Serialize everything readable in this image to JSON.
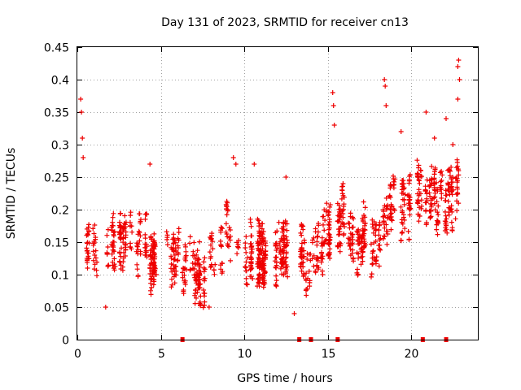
{
  "chart_data": {
    "type": "scatter",
    "title": "Day 131 of 2023, SRMTID for receiver cn13",
    "xlabel": "GPS time / hours",
    "ylabel": "SRMTID / TECUs",
    "xlim": [
      0,
      24
    ],
    "ylim": [
      0,
      0.45
    ],
    "x_ticks": [
      0,
      5,
      10,
      15,
      20
    ],
    "x_tick_labels": [
      "0",
      "5",
      "10",
      "15",
      "20"
    ],
    "y_ticks": [
      0,
      0.05,
      0.1,
      0.15,
      0.2,
      0.25,
      0.3,
      0.35,
      0.4,
      0.45
    ],
    "y_tick_labels": [
      "0",
      "0.05",
      "0.1",
      "0.15",
      "0.2",
      "0.25",
      "0.3",
      "0.35",
      "0.4",
      "0.45"
    ],
    "grid": true,
    "marker": "+",
    "series": [
      {
        "name": "SRMTID",
        "color": "#ee0000",
        "trend": {
          "x": [
            0,
            0.5,
            1,
            2,
            3,
            4,
            5,
            6,
            7,
            8,
            9,
            10,
            11,
            12,
            13,
            14,
            15,
            15.5,
            16,
            17,
            18,
            19,
            20,
            21,
            22,
            23
          ],
          "y": [
            0.2,
            0.16,
            0.13,
            0.15,
            0.15,
            0.14,
            0.13,
            0.12,
            0.11,
            0.12,
            0.15,
            0.14,
            0.13,
            0.14,
            0.13,
            0.12,
            0.16,
            0.19,
            0.18,
            0.15,
            0.15,
            0.2,
            0.22,
            0.22,
            0.21,
            0.24
          ]
        },
        "spread": 0.045,
        "n_points": 1400,
        "peaks": [
          {
            "x": 0.2,
            "y": 0.37
          },
          {
            "x": 0.25,
            "y": 0.35
          },
          {
            "x": 0.3,
            "y": 0.31
          },
          {
            "x": 0.35,
            "y": 0.28
          },
          {
            "x": 4.35,
            "y": 0.27
          },
          {
            "x": 9.35,
            "y": 0.28
          },
          {
            "x": 9.5,
            "y": 0.27
          },
          {
            "x": 10.6,
            "y": 0.27
          },
          {
            "x": 12.5,
            "y": 0.25
          },
          {
            "x": 15.3,
            "y": 0.38
          },
          {
            "x": 15.35,
            "y": 0.36
          },
          {
            "x": 15.4,
            "y": 0.33
          },
          {
            "x": 18.4,
            "y": 0.4
          },
          {
            "x": 18.45,
            "y": 0.39
          },
          {
            "x": 18.5,
            "y": 0.36
          },
          {
            "x": 19.4,
            "y": 0.32
          },
          {
            "x": 20.9,
            "y": 0.35
          },
          {
            "x": 21.4,
            "y": 0.31
          },
          {
            "x": 22.1,
            "y": 0.34
          },
          {
            "x": 22.5,
            "y": 0.3
          },
          {
            "x": 22.8,
            "y": 0.42
          },
          {
            "x": 22.85,
            "y": 0.43
          },
          {
            "x": 22.9,
            "y": 0.4
          },
          {
            "x": 22.8,
            "y": 0.37
          },
          {
            "x": 13.0,
            "y": 0.04
          },
          {
            "x": 1.7,
            "y": 0.05
          },
          {
            "x": 7.9,
            "y": 0.05
          }
        ],
        "gap_markers_x": [
          6.3,
          13.3,
          14.0,
          15.6,
          20.7,
          22.1
        ]
      }
    ]
  }
}
